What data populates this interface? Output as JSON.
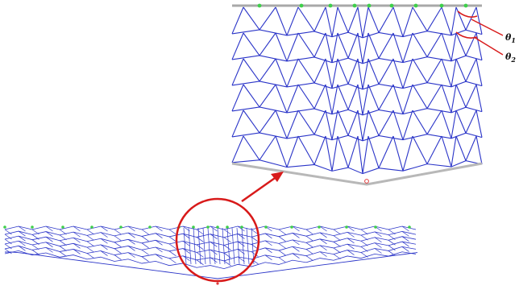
{
  "figure": {
    "colors": {
      "truss": "#2a34c8",
      "support_node": "#3ecf4a",
      "load_node": "#e03a3a",
      "top_plate": "#a8a8a8",
      "bottom_plate": "#b8b8b8",
      "highlight": "#d81a1a"
    },
    "labels": {
      "theta1_symbol": "θ",
      "theta1_subscript": "1",
      "theta2_symbol": "θ",
      "theta2_subscript": "2"
    }
  }
}
